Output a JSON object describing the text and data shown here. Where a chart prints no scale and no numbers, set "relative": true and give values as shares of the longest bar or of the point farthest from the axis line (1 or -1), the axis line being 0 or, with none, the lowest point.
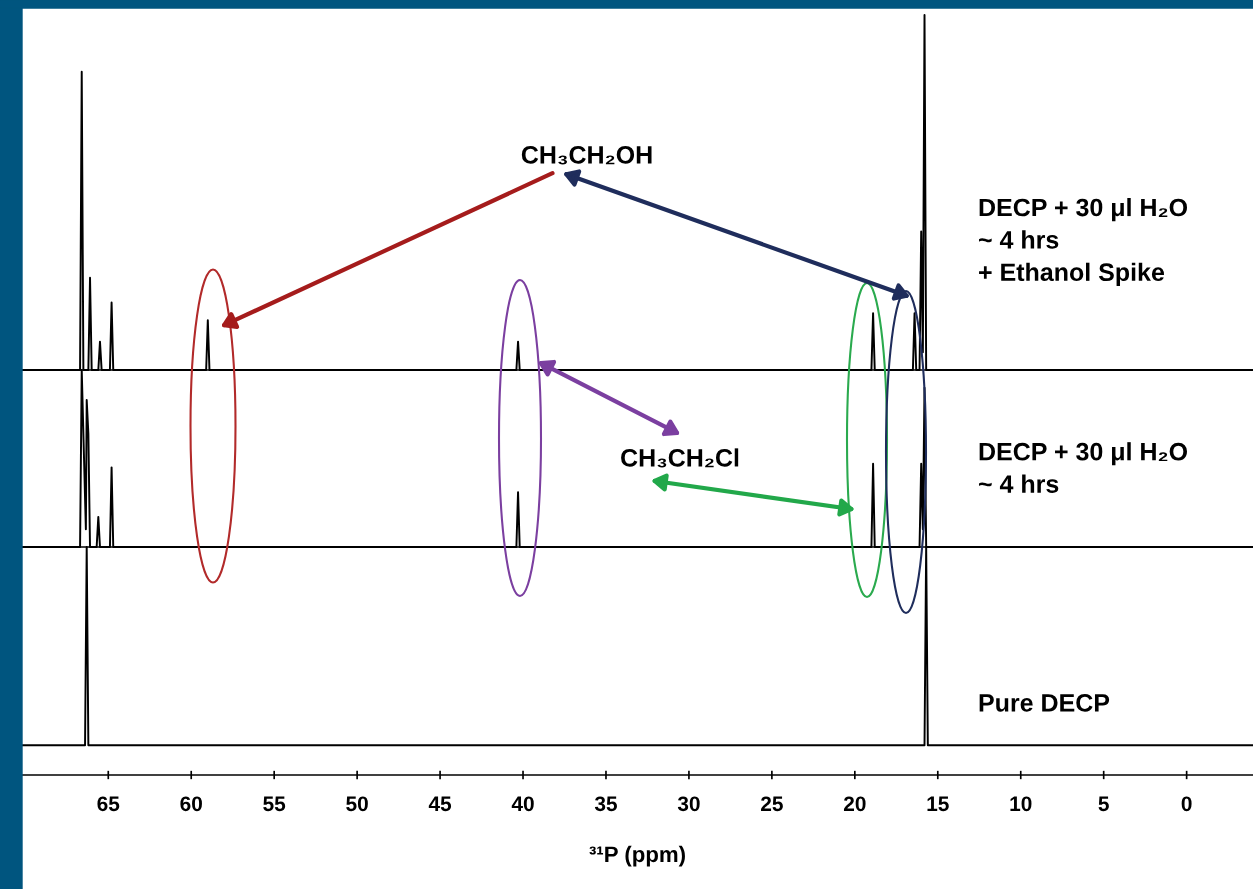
{
  "chart_data": [
    {
      "type": "line",
      "relative": true,
      "tick_labels": false,
      "xlim": [
        70.2,
        -4.0
      ],
      "xticks": [
        65,
        60,
        55,
        50,
        45,
        40,
        35,
        30,
        25,
        20,
        15,
        10,
        5,
        0
      ],
      "grid": false,
      "annotations": [
        "DECP + 30 μl H₂O\n~ 4 hrs\n+ Ethanol Spike",
        "CH₃CH₂OH"
      ],
      "series": [
        {
          "color": "#000000",
          "x": [
            70.2,
            66.7,
            66.6,
            66.5,
            66.2,
            66.1,
            66.0,
            65.6,
            65.5,
            65.4,
            64.9,
            64.8,
            64.7,
            59.1,
            59.0,
            58.9,
            40.4,
            40.3,
            40.2,
            19.0,
            18.9,
            18.8,
            16.5,
            16.4,
            16.3,
            16.1,
            16.0,
            15.9,
            15.8,
            15.7,
            -4.0
          ],
          "values": [
            0,
            0,
            0.84,
            0,
            0,
            0.26,
            0,
            0,
            0.08,
            0,
            0,
            0.19,
            0,
            0,
            0.14,
            0,
            0,
            0.08,
            0,
            0,
            0.16,
            0,
            0,
            0.16,
            0,
            0,
            0.39,
            0.05,
            1.0,
            0,
            0
          ]
        }
      ]
    },
    {
      "type": "line",
      "relative": true,
      "tick_labels": false,
      "xlim": [
        70.2,
        -4.0
      ],
      "xticks": [
        65,
        60,
        55,
        50,
        45,
        40,
        35,
        30,
        25,
        20,
        15,
        10,
        5,
        0
      ],
      "grid": false,
      "annotations": [
        "DECP + 30 μl H₂O\n~ 4 hrs",
        "CH₃CH₂Cl"
      ],
      "series": [
        {
          "color": "#000000",
          "x": [
            70.2,
            66.7,
            66.6,
            66.35,
            66.3,
            66.2,
            66.1,
            65.7,
            65.6,
            65.5,
            64.9,
            64.8,
            64.7,
            40.4,
            40.3,
            40.2,
            19.0,
            18.9,
            18.8,
            16.1,
            16.0,
            15.9,
            15.8,
            15.7,
            -4.0
          ],
          "values": [
            0,
            0,
            1.0,
            0.1,
            0.83,
            0.64,
            0,
            0,
            0.17,
            0,
            0,
            0.45,
            0,
            0,
            0.31,
            0,
            0,
            0.47,
            0,
            0,
            0.47,
            0.1,
            0.9,
            0,
            0
          ]
        }
      ]
    },
    {
      "type": "line",
      "relative": true,
      "tick_labels": "x",
      "xlim": [
        70.2,
        -4.0
      ],
      "xticks": [
        65,
        60,
        55,
        50,
        45,
        40,
        35,
        30,
        25,
        20,
        15,
        10,
        5,
        0
      ],
      "grid": false,
      "xlabel": "³¹P (ppm)",
      "annotations": [
        "Pure DECP"
      ],
      "series": [
        {
          "color": "#000000",
          "x": [
            70.2,
            66.4,
            66.3,
            66.2,
            15.8,
            15.7,
            15.6,
            -4.0
          ],
          "values": [
            0,
            0,
            1.0,
            0,
            0,
            1.0,
            0,
            0
          ]
        }
      ]
    }
  ]
}
